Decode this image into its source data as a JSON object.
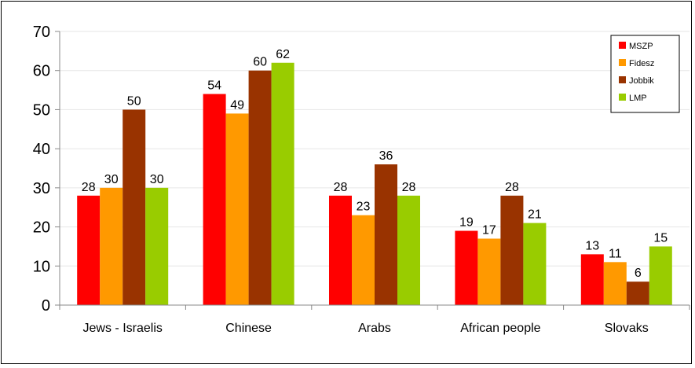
{
  "chart_data": {
    "type": "bar",
    "categories": [
      "Jews - Israelis",
      "Chinese",
      "Arabs",
      "African people",
      "Slovaks"
    ],
    "series": [
      {
        "name": "MSZP",
        "color": "#ff0000",
        "values": [
          28,
          54,
          28,
          19,
          13
        ]
      },
      {
        "name": "Fidesz",
        "color": "#ff9900",
        "values": [
          30,
          49,
          23,
          17,
          11
        ]
      },
      {
        "name": "Jobbik",
        "color": "#993300",
        "values": [
          50,
          60,
          36,
          28,
          6
        ]
      },
      {
        "name": "LMP",
        "color": "#99cc00",
        "values": [
          30,
          62,
          28,
          21,
          15
        ]
      }
    ],
    "ylim": [
      0,
      70
    ],
    "yticks": [
      0,
      10,
      20,
      30,
      40,
      50,
      60,
      70
    ],
    "grid": true,
    "legend_position": "top-right",
    "data_labels": true
  }
}
